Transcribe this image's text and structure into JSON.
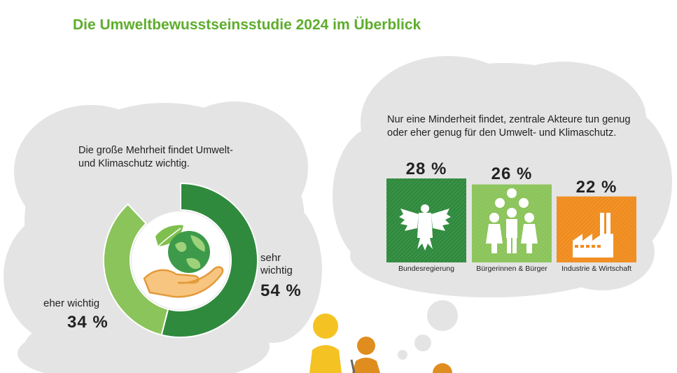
{
  "title": "Die Umweltbewusstseinsstudie 2024 im Überblick",
  "left_panel": {
    "statement": "Die große Mehrheit findet Umwelt- und Klimaschutz wichtig."
  },
  "right_panel": {
    "statement": "Nur eine Minderheit findet, zentrale Akteure tun genug oder eher genug für den Umwelt- und Klimaschutz."
  },
  "colors": {
    "dark_green": "#2f8a3d",
    "light_green": "#8bc45a",
    "orange": "#f08c1e",
    "cloud_grey": "#e4e4e4",
    "title_green": "#5dad2c"
  },
  "chart_data": [
    {
      "type": "pie",
      "variant": "donut",
      "slices": [
        {
          "label_lines": [
            "sehr",
            "wichtig"
          ],
          "value": 54,
          "display": "54 %",
          "color": "#2f8a3d"
        },
        {
          "label_lines": [
            "eher wichtig"
          ],
          "value": 34,
          "display": "34 %",
          "color": "#8bc45a"
        }
      ],
      "center_icon": "hand-holding-earth-icon"
    },
    {
      "type": "bar",
      "categories": [
        "Bundesregierung",
        "Bürgerinnen & Bürger",
        "Industrie & Wirtschaft"
      ],
      "values": [
        28,
        26,
        22
      ],
      "display": [
        "28 %",
        "26 %",
        "22 %"
      ],
      "colors": [
        "#2f8a3d",
        "#8bc45a",
        "#f08c1e"
      ],
      "icons": [
        "federal-eagle-icon",
        "people-group-icon",
        "factory-icon"
      ],
      "ylim": [
        0,
        28
      ]
    }
  ]
}
